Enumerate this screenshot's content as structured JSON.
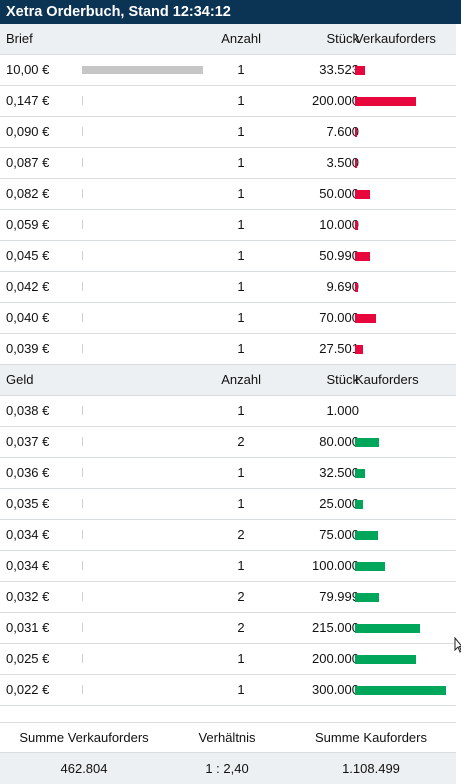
{
  "title": "Xetra Orderbuch, Stand 12:34:12",
  "colors": {
    "title_bg": "#0b3354",
    "sell": "#e8073c",
    "buy": "#00a65a",
    "neutral": "#c6c6c6"
  },
  "ask": {
    "header": {
      "price": "Brief",
      "count": "Anzahl",
      "pieces": "Stück",
      "orders": "Verkauforders"
    },
    "rows": [
      {
        "price": "10,00 €",
        "count": "1",
        "pieces": "33.523",
        "price_bar": 1.0,
        "volume": 33523
      },
      {
        "price": "0,147 €",
        "count": "1",
        "pieces": "200.000",
        "price_bar": 0,
        "volume": 200000
      },
      {
        "price": "0,090 €",
        "count": "1",
        "pieces": "7.600",
        "price_bar": 0,
        "volume": 7600
      },
      {
        "price": "0,087 €",
        "count": "1",
        "pieces": "3.500",
        "price_bar": 0,
        "volume": 3500
      },
      {
        "price": "0,082 €",
        "count": "1",
        "pieces": "50.000",
        "price_bar": 0,
        "volume": 50000
      },
      {
        "price": "0,059 €",
        "count": "1",
        "pieces": "10.000",
        "price_bar": 0,
        "volume": 10000
      },
      {
        "price": "0,045 €",
        "count": "1",
        "pieces": "50.990",
        "price_bar": 0,
        "volume": 50990
      },
      {
        "price": "0,042 €",
        "count": "1",
        "pieces": "9.690",
        "price_bar": 0,
        "volume": 9690
      },
      {
        "price": "0,040 €",
        "count": "1",
        "pieces": "70.000",
        "price_bar": 0,
        "volume": 70000
      },
      {
        "price": "0,039 €",
        "count": "1",
        "pieces": "27.501",
        "price_bar": 0,
        "volume": 27501
      }
    ]
  },
  "bid": {
    "header": {
      "price": "Geld",
      "count": "Anzahl",
      "pieces": "Stück",
      "orders": "Kauforders"
    },
    "rows": [
      {
        "price": "0,038 €",
        "count": "1",
        "pieces": "1.000",
        "price_bar": 0,
        "volume": 1000
      },
      {
        "price": "0,037 €",
        "count": "2",
        "pieces": "80.000",
        "price_bar": 0,
        "volume": 80000
      },
      {
        "price": "0,036 €",
        "count": "1",
        "pieces": "32.500",
        "price_bar": 0,
        "volume": 32500
      },
      {
        "price": "0,035 €",
        "count": "1",
        "pieces": "25.000",
        "price_bar": 0,
        "volume": 25000
      },
      {
        "price": "0,034 €",
        "count": "2",
        "pieces": "75.000",
        "price_bar": 0,
        "volume": 75000
      },
      {
        "price": "0,034 €",
        "count": "1",
        "pieces": "100.000",
        "price_bar": 0,
        "volume": 100000
      },
      {
        "price": "0,032 €",
        "count": "2",
        "pieces": "79.999",
        "price_bar": 0,
        "volume": 79999
      },
      {
        "price": "0,031 €",
        "count": "2",
        "pieces": "215.000",
        "price_bar": 0,
        "volume": 215000
      },
      {
        "price": "0,025 €",
        "count": "1",
        "pieces": "200.000",
        "price_bar": 0,
        "volume": 200000
      },
      {
        "price": "0,022 €",
        "count": "1",
        "pieces": "300.000",
        "price_bar": 0,
        "volume": 300000
      }
    ]
  },
  "summary": {
    "sell_label": "Summe Verkauforders",
    "ratio_label": "Verhältnis",
    "buy_label": "Summe Kauforders",
    "sell_value": "462.804",
    "ratio_value": "1 : 2,40",
    "buy_value": "1.108.499"
  },
  "cursor": "mouse-pointer-icon"
}
